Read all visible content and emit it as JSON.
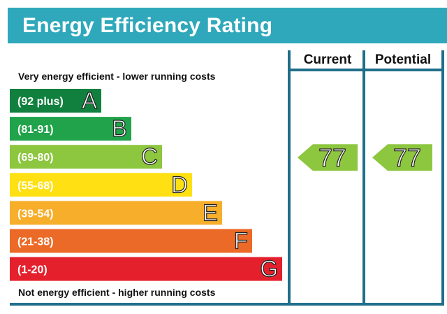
{
  "title": "Energy Efficiency Rating",
  "top_label": "Very energy efficient - lower running costs",
  "bottom_label": "Not energy efficient - higher running costs",
  "columns": {
    "current": "Current",
    "potential": "Potential"
  },
  "colors": {
    "title_bg": "#2fa8bb",
    "frame": "#1f6f8b",
    "A": "#11803f",
    "B": "#20a34a",
    "C": "#8dc63f",
    "D": "#ffe013",
    "E": "#f7ae2b",
    "F": "#ec6a27",
    "G": "#e5202d"
  },
  "chart_data": {
    "type": "bar",
    "title": "Energy Efficiency Rating",
    "bands": [
      {
        "letter": "A",
        "range": "(92 plus)",
        "min": 92,
        "max": 100
      },
      {
        "letter": "B",
        "range": "(81-91)",
        "min": 81,
        "max": 91
      },
      {
        "letter": "C",
        "range": "(69-80)",
        "min": 69,
        "max": 80
      },
      {
        "letter": "D",
        "range": "(55-68)",
        "min": 55,
        "max": 68
      },
      {
        "letter": "E",
        "range": "(39-54)",
        "min": 39,
        "max": 54
      },
      {
        "letter": "F",
        "range": "(21-38)",
        "min": 21,
        "max": 38
      },
      {
        "letter": "G",
        "range": "(1-20)",
        "min": 1,
        "max": 20
      }
    ],
    "current": {
      "value": 77,
      "band": "C"
    },
    "potential": {
      "value": 77,
      "band": "C"
    }
  }
}
